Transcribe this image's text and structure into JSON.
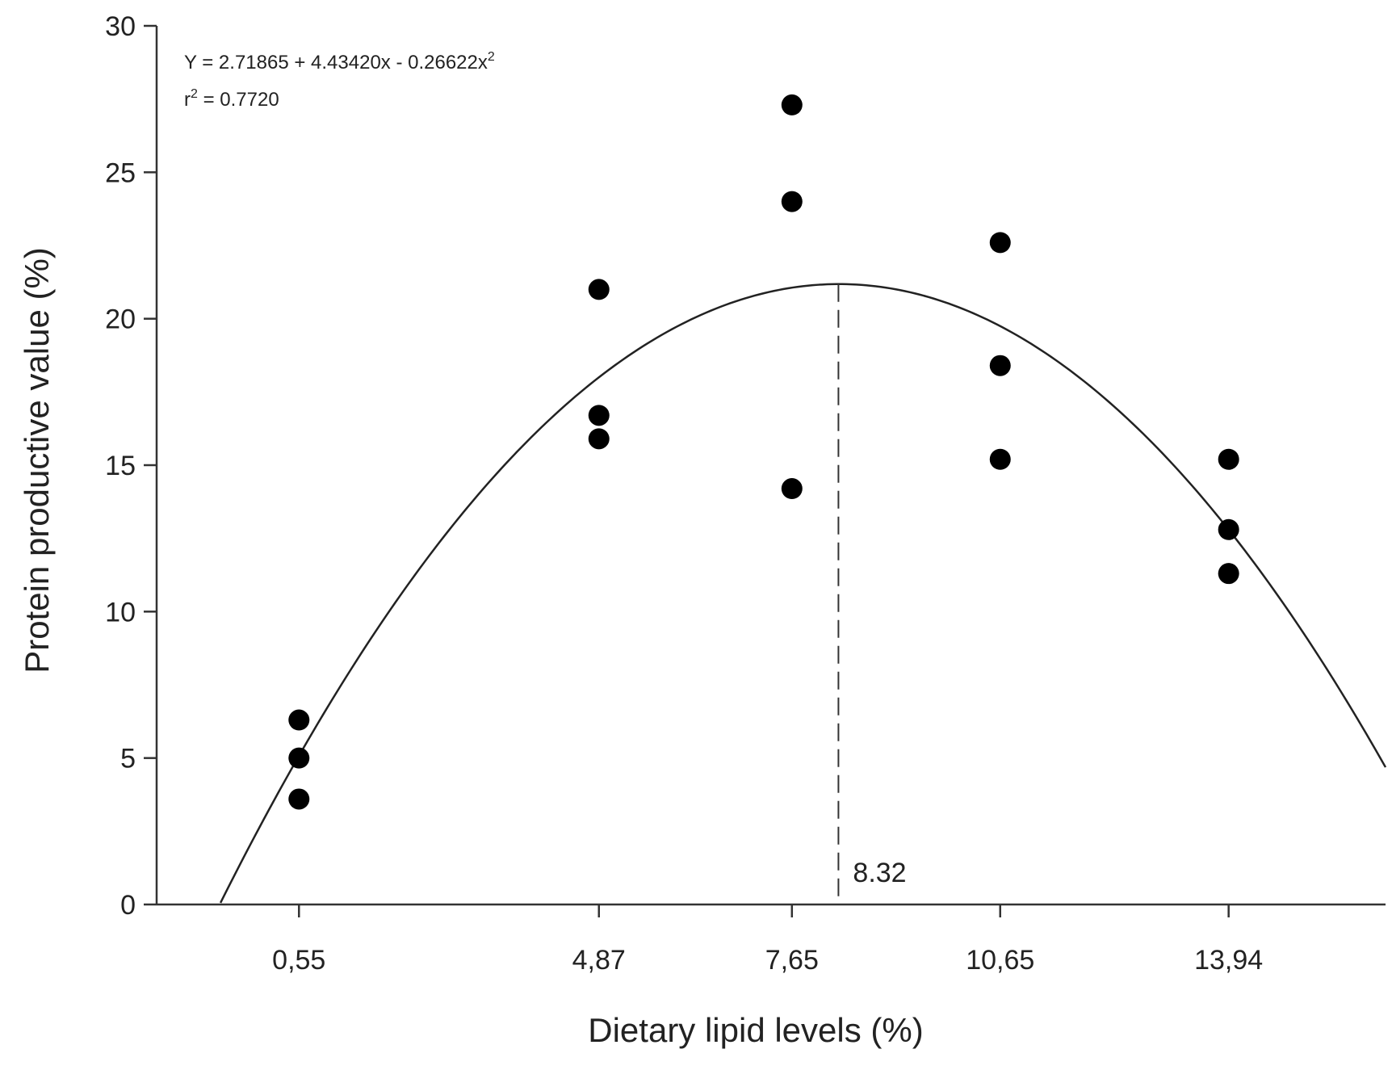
{
  "chart_data": {
    "type": "scatter",
    "xlabel": "Dietary lipid levels (%)",
    "ylabel": "Protein productive value (%)",
    "ylim": [
      0,
      30
    ],
    "xlim": [
      -1.5,
      16.2
    ],
    "yticks": [
      0,
      5,
      10,
      15,
      20,
      25,
      30
    ],
    "xticks": [
      {
        "value": 0.55,
        "label": "0,55"
      },
      {
        "value": 4.87,
        "label": "4,87"
      },
      {
        "value": 7.65,
        "label": "7,65"
      },
      {
        "value": 10.65,
        "label": "10,65"
      },
      {
        "value": 13.94,
        "label": "13,94"
      }
    ],
    "points": [
      {
        "x": 0.55,
        "y": 6.3
      },
      {
        "x": 0.55,
        "y": 5.0
      },
      {
        "x": 0.55,
        "y": 3.6
      },
      {
        "x": 4.87,
        "y": 21.0
      },
      {
        "x": 4.87,
        "y": 16.7
      },
      {
        "x": 4.87,
        "y": 15.9
      },
      {
        "x": 7.65,
        "y": 27.3
      },
      {
        "x": 7.65,
        "y": 24.0
      },
      {
        "x": 7.65,
        "y": 14.2
      },
      {
        "x": 10.65,
        "y": 22.6
      },
      {
        "x": 10.65,
        "y": 18.4
      },
      {
        "x": 10.65,
        "y": 15.2
      },
      {
        "x": 13.94,
        "y": 15.2
      },
      {
        "x": 13.94,
        "y": 12.8
      },
      {
        "x": 13.94,
        "y": 11.3
      }
    ],
    "fit": {
      "a": 2.71865,
      "b": 4.4342,
      "c": -0.26622,
      "x_from": -0.58,
      "x_to": 16.2,
      "equation_prefix": "Y = 2.71865 + 4.43420x - 0.26622x",
      "equation_exp": "2",
      "r2_prefix": "r",
      "r2_exp": "2",
      "r2_suffix": " = 0.7720"
    },
    "optimum": {
      "x": 8.32,
      "label": "8.32"
    },
    "grid": false,
    "legend": "none"
  }
}
